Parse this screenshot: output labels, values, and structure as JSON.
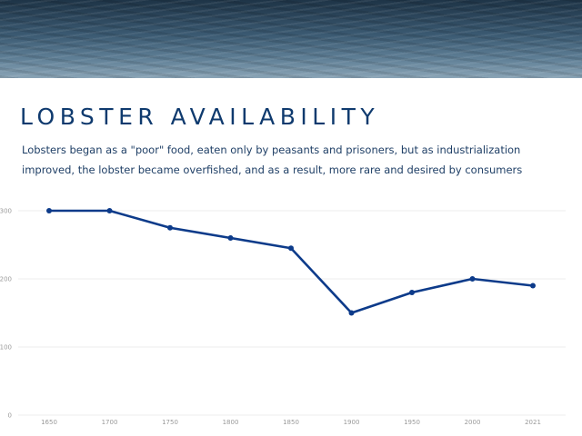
{
  "header": {
    "title": "LOBSTER AVAILABILITY",
    "subtitle": "Lobsters began as a \"poor\" food, eaten only by peasants and prisoners, but as industrialization improved, the lobster became overfished, and as a result, more rare and desired by consumers"
  },
  "colors": {
    "line": "#0d3b8a",
    "grid": "#ececec",
    "title": "#0f3a6e"
  },
  "chart_data": {
    "type": "line",
    "title": "",
    "xlabel": "",
    "ylabel": "",
    "categories": [
      "1650",
      "1700",
      "1750",
      "1800",
      "1850",
      "1900",
      "1950",
      "2000",
      "2021"
    ],
    "series": [
      {
        "values": [
          300,
          300,
          275,
          260,
          245,
          150,
          180,
          200,
          190
        ]
      }
    ],
    "ylim": [
      0,
      300
    ],
    "yticks": [
      "0",
      "100",
      "200",
      "300"
    ],
    "grid": true,
    "legend": "none"
  }
}
